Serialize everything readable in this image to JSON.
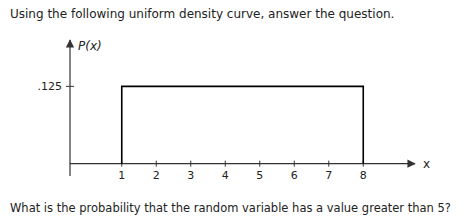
{
  "chart_data": {
    "type": "line",
    "title": "Using the following uniform density curve, answer the question.",
    "annotations": [
      "What is the probability that the random variable has a value greater than 5?"
    ],
    "x_label": "x",
    "y_label": "P(x)",
    "x": [
      1,
      1,
      8,
      8
    ],
    "values": [
      0,
      0.125,
      0.125,
      0
    ],
    "color": "#000000",
    "xlim": [
      -0.5,
      9.5
    ],
    "ylim": [
      -0.02,
      0.2
    ],
    "xticks": [
      1,
      2,
      3,
      4,
      5,
      6,
      7,
      8
    ],
    "yticks": [
      {
        "value": 0.125,
        "label": ".125"
      }
    ],
    "grid": false
  }
}
